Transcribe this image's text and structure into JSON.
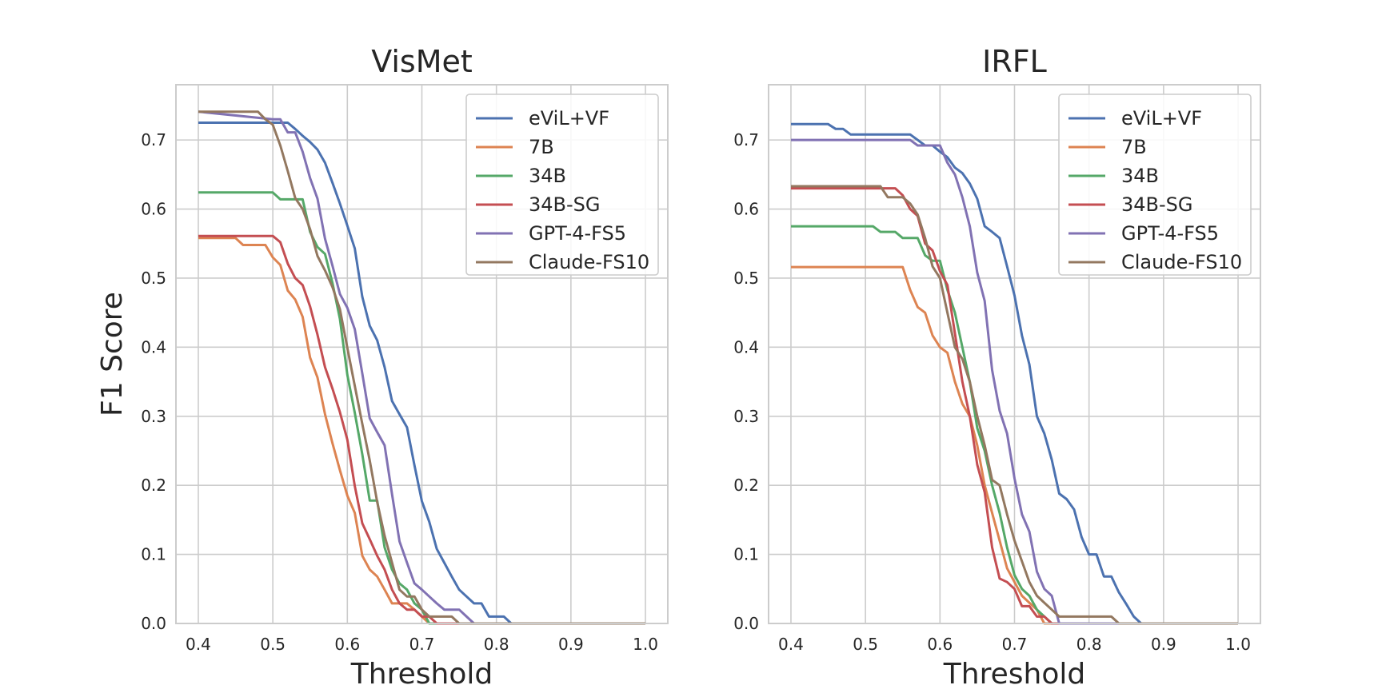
{
  "chart_data": [
    {
      "type": "line",
      "title": "VisMet",
      "xlabel": "Threshold",
      "ylabel": "F1 Score",
      "xlim": [
        0.37,
        1.03
      ],
      "ylim": [
        0.0,
        0.78
      ],
      "xticks": [
        "0.4",
        "0.5",
        "0.6",
        "0.7",
        "0.8",
        "0.9",
        "1.0"
      ],
      "yticks": [
        "0.0",
        "0.1",
        "0.2",
        "0.3",
        "0.4",
        "0.5",
        "0.6",
        "0.7"
      ],
      "grid": true,
      "legend_position": "upper-right",
      "series": [
        {
          "name": "eViL+VF",
          "color": "#4c72b0",
          "x": [
            0.4,
            0.51,
            0.52,
            0.53,
            0.54,
            0.55,
            0.56,
            0.57,
            0.58,
            0.59,
            0.6,
            0.61,
            0.62,
            0.63,
            0.64,
            0.65,
            0.66,
            0.67,
            0.68,
            0.69,
            0.7,
            0.71,
            0.72,
            0.73,
            0.74,
            0.75,
            0.76,
            0.77,
            0.78,
            0.79,
            0.8,
            0.81,
            0.82,
            1.0
          ],
          "y": [
            0.725,
            0.725,
            0.725,
            0.716,
            0.706,
            0.697,
            0.686,
            0.667,
            0.638,
            0.608,
            0.576,
            0.543,
            0.473,
            0.431,
            0.41,
            0.371,
            0.322,
            0.303,
            0.284,
            0.229,
            0.177,
            0.147,
            0.108,
            0.088,
            0.068,
            0.049,
            0.039,
            0.029,
            0.029,
            0.01,
            0.01,
            0.01,
            0.0,
            0.0
          ]
        },
        {
          "name": "7B",
          "color": "#dd8452",
          "x": [
            0.4,
            0.45,
            0.46,
            0.47,
            0.48,
            0.49,
            0.5,
            0.51,
            0.52,
            0.53,
            0.54,
            0.55,
            0.56,
            0.57,
            0.58,
            0.59,
            0.6,
            0.61,
            0.62,
            0.63,
            0.64,
            0.65,
            0.66,
            0.67,
            0.68,
            0.69,
            0.7,
            0.71,
            0.72,
            1.0
          ],
          "y": [
            0.558,
            0.558,
            0.548,
            0.548,
            0.548,
            0.548,
            0.53,
            0.519,
            0.482,
            0.469,
            0.444,
            0.385,
            0.356,
            0.303,
            0.261,
            0.222,
            0.185,
            0.16,
            0.098,
            0.078,
            0.068,
            0.049,
            0.029,
            0.029,
            0.029,
            0.02,
            0.01,
            0.0,
            0.0,
            0.0
          ]
        },
        {
          "name": "34B",
          "color": "#55a868",
          "x": [
            0.4,
            0.5,
            0.51,
            0.53,
            0.54,
            0.55,
            0.56,
            0.57,
            0.58,
            0.59,
            0.6,
            0.61,
            0.62,
            0.63,
            0.64,
            0.65,
            0.66,
            0.67,
            0.68,
            0.69,
            0.7,
            0.71,
            1.0
          ],
          "y": [
            0.624,
            0.624,
            0.614,
            0.614,
            0.614,
            0.567,
            0.545,
            0.535,
            0.493,
            0.441,
            0.36,
            0.305,
            0.245,
            0.178,
            0.178,
            0.11,
            0.078,
            0.058,
            0.049,
            0.029,
            0.02,
            0.0,
            0.0
          ]
        },
        {
          "name": "34B-SG",
          "color": "#c44e52",
          "x": [
            0.4,
            0.5,
            0.51,
            0.52,
            0.53,
            0.54,
            0.55,
            0.56,
            0.57,
            0.58,
            0.59,
            0.6,
            0.61,
            0.62,
            0.63,
            0.64,
            0.65,
            0.66,
            0.67,
            0.68,
            0.69,
            0.7,
            0.71,
            0.72,
            1.0
          ],
          "y": [
            0.561,
            0.561,
            0.552,
            0.521,
            0.5,
            0.49,
            0.459,
            0.418,
            0.371,
            0.34,
            0.306,
            0.266,
            0.199,
            0.145,
            0.122,
            0.098,
            0.078,
            0.049,
            0.029,
            0.02,
            0.02,
            0.01,
            0.01,
            0.0,
            0.0
          ]
        },
        {
          "name": "GPT-4-FS5",
          "color": "#8172b3",
          "x": [
            0.4,
            0.5,
            0.51,
            0.52,
            0.53,
            0.54,
            0.55,
            0.56,
            0.57,
            0.58,
            0.59,
            0.6,
            0.61,
            0.62,
            0.63,
            0.64,
            0.65,
            0.66,
            0.67,
            0.68,
            0.69,
            0.7,
            0.71,
            0.72,
            0.73,
            0.74,
            0.75,
            0.76,
            0.77,
            1.0
          ],
          "y": [
            0.741,
            0.73,
            0.73,
            0.711,
            0.711,
            0.683,
            0.645,
            0.615,
            0.557,
            0.518,
            0.477,
            0.457,
            0.426,
            0.362,
            0.297,
            0.277,
            0.258,
            0.187,
            0.119,
            0.088,
            0.058,
            0.049,
            0.039,
            0.029,
            0.02,
            0.02,
            0.02,
            0.01,
            0.0,
            0.0
          ]
        },
        {
          "name": "Claude-FS10",
          "color": "#937860",
          "x": [
            0.4,
            0.48,
            0.49,
            0.5,
            0.51,
            0.52,
            0.53,
            0.54,
            0.55,
            0.56,
            0.57,
            0.58,
            0.59,
            0.6,
            0.61,
            0.62,
            0.63,
            0.64,
            0.65,
            0.66,
            0.67,
            0.68,
            0.69,
            0.7,
            0.71,
            0.72,
            0.73,
            0.74,
            0.75,
            1.0
          ],
          "y": [
            0.741,
            0.741,
            0.73,
            0.722,
            0.692,
            0.655,
            0.616,
            0.6,
            0.571,
            0.532,
            0.511,
            0.487,
            0.455,
            0.399,
            0.344,
            0.289,
            0.236,
            0.176,
            0.127,
            0.088,
            0.049,
            0.039,
            0.039,
            0.02,
            0.01,
            0.01,
            0.01,
            0.01,
            0.0,
            0.0
          ]
        }
      ]
    },
    {
      "type": "line",
      "title": "IRFL",
      "xlabel": "Threshold",
      "ylabel": "",
      "xlim": [
        0.37,
        1.03
      ],
      "ylim": [
        0.0,
        0.78
      ],
      "xticks": [
        "0.4",
        "0.5",
        "0.6",
        "0.7",
        "0.8",
        "0.9",
        "1.0"
      ],
      "yticks": [
        "0.0",
        "0.1",
        "0.2",
        "0.3",
        "0.4",
        "0.5",
        "0.6",
        "0.7"
      ],
      "grid": true,
      "legend_position": "upper-right",
      "series": [
        {
          "name": "eViL+VF",
          "color": "#4c72b0",
          "x": [
            0.4,
            0.45,
            0.46,
            0.47,
            0.48,
            0.49,
            0.5,
            0.51,
            0.52,
            0.53,
            0.54,
            0.55,
            0.56,
            0.57,
            0.58,
            0.59,
            0.6,
            0.61,
            0.62,
            0.63,
            0.64,
            0.65,
            0.66,
            0.67,
            0.68,
            0.69,
            0.7,
            0.71,
            0.72,
            0.73,
            0.74,
            0.75,
            0.76,
            0.77,
            0.78,
            0.79,
            0.8,
            0.81,
            0.82,
            0.83,
            0.84,
            0.85,
            0.86,
            0.87,
            1.0
          ],
          "y": [
            0.723,
            0.723,
            0.716,
            0.716,
            0.708,
            0.708,
            0.708,
            0.708,
            0.708,
            0.708,
            0.708,
            0.708,
            0.708,
            0.7,
            0.692,
            0.692,
            0.683,
            0.675,
            0.66,
            0.652,
            0.637,
            0.615,
            0.575,
            0.567,
            0.558,
            0.517,
            0.475,
            0.417,
            0.375,
            0.3,
            0.275,
            0.237,
            0.188,
            0.18,
            0.165,
            0.125,
            0.1,
            0.1,
            0.068,
            0.068,
            0.045,
            0.028,
            0.01,
            0.0,
            0.0
          ]
        },
        {
          "name": "7B",
          "color": "#dd8452",
          "x": [
            0.4,
            0.55,
            0.56,
            0.57,
            0.58,
            0.59,
            0.6,
            0.61,
            0.62,
            0.63,
            0.64,
            0.65,
            0.66,
            0.67,
            0.68,
            0.69,
            0.7,
            0.71,
            0.72,
            0.73,
            0.74,
            1.0
          ],
          "y": [
            0.516,
            0.516,
            0.483,
            0.458,
            0.45,
            0.417,
            0.4,
            0.392,
            0.35,
            0.318,
            0.3,
            0.258,
            0.2,
            0.16,
            0.12,
            0.08,
            0.06,
            0.04,
            0.03,
            0.02,
            0.0,
            0.0
          ]
        },
        {
          "name": "34B",
          "color": "#55a868",
          "x": [
            0.4,
            0.51,
            0.52,
            0.53,
            0.54,
            0.55,
            0.56,
            0.57,
            0.58,
            0.59,
            0.6,
            0.61,
            0.62,
            0.63,
            0.64,
            0.65,
            0.66,
            0.67,
            0.68,
            0.69,
            0.7,
            0.71,
            0.72,
            0.73,
            0.74,
            0.75,
            1.0
          ],
          "y": [
            0.575,
            0.575,
            0.567,
            0.567,
            0.567,
            0.558,
            0.558,
            0.558,
            0.533,
            0.525,
            0.525,
            0.483,
            0.45,
            0.4,
            0.35,
            0.283,
            0.25,
            0.2,
            0.16,
            0.11,
            0.07,
            0.05,
            0.04,
            0.02,
            0.01,
            0.0,
            0.0
          ]
        },
        {
          "name": "34B-SG",
          "color": "#c44e52",
          "x": [
            0.4,
            0.54,
            0.55,
            0.56,
            0.57,
            0.58,
            0.59,
            0.6,
            0.61,
            0.62,
            0.63,
            0.64,
            0.65,
            0.66,
            0.67,
            0.68,
            0.69,
            0.7,
            0.71,
            0.72,
            0.73,
            0.74,
            0.75,
            1.0
          ],
          "y": [
            0.63,
            0.63,
            0.62,
            0.6,
            0.59,
            0.55,
            0.54,
            0.51,
            0.49,
            0.42,
            0.35,
            0.3,
            0.23,
            0.19,
            0.11,
            0.065,
            0.06,
            0.05,
            0.025,
            0.025,
            0.01,
            0.01,
            0.0,
            0.0
          ]
        },
        {
          "name": "GPT-4-FS5",
          "color": "#8172b3",
          "x": [
            0.4,
            0.56,
            0.57,
            0.58,
            0.59,
            0.6,
            0.61,
            0.62,
            0.63,
            0.64,
            0.65,
            0.66,
            0.67,
            0.68,
            0.69,
            0.7,
            0.71,
            0.72,
            0.73,
            0.74,
            0.75,
            0.76,
            0.77,
            1.0
          ],
          "y": [
            0.7,
            0.7,
            0.692,
            0.692,
            0.692,
            0.692,
            0.667,
            0.65,
            0.617,
            0.575,
            0.508,
            0.467,
            0.367,
            0.308,
            0.275,
            0.21,
            0.158,
            0.133,
            0.075,
            0.05,
            0.04,
            0.0,
            0.0,
            0.0
          ]
        },
        {
          "name": "Claude-FS10",
          "color": "#937860",
          "x": [
            0.4,
            0.52,
            0.53,
            0.54,
            0.55,
            0.56,
            0.57,
            0.58,
            0.59,
            0.6,
            0.61,
            0.62,
            0.63,
            0.64,
            0.65,
            0.66,
            0.67,
            0.68,
            0.69,
            0.7,
            0.71,
            0.72,
            0.73,
            0.74,
            0.75,
            0.76,
            0.82,
            0.83,
            0.84,
            1.0
          ],
          "y": [
            0.633,
            0.633,
            0.617,
            0.617,
            0.617,
            0.608,
            0.592,
            0.558,
            0.517,
            0.5,
            0.45,
            0.4,
            0.383,
            0.35,
            0.3,
            0.258,
            0.208,
            0.2,
            0.158,
            0.12,
            0.09,
            0.06,
            0.04,
            0.03,
            0.02,
            0.01,
            0.01,
            0.01,
            0.0,
            0.0
          ]
        }
      ]
    }
  ]
}
